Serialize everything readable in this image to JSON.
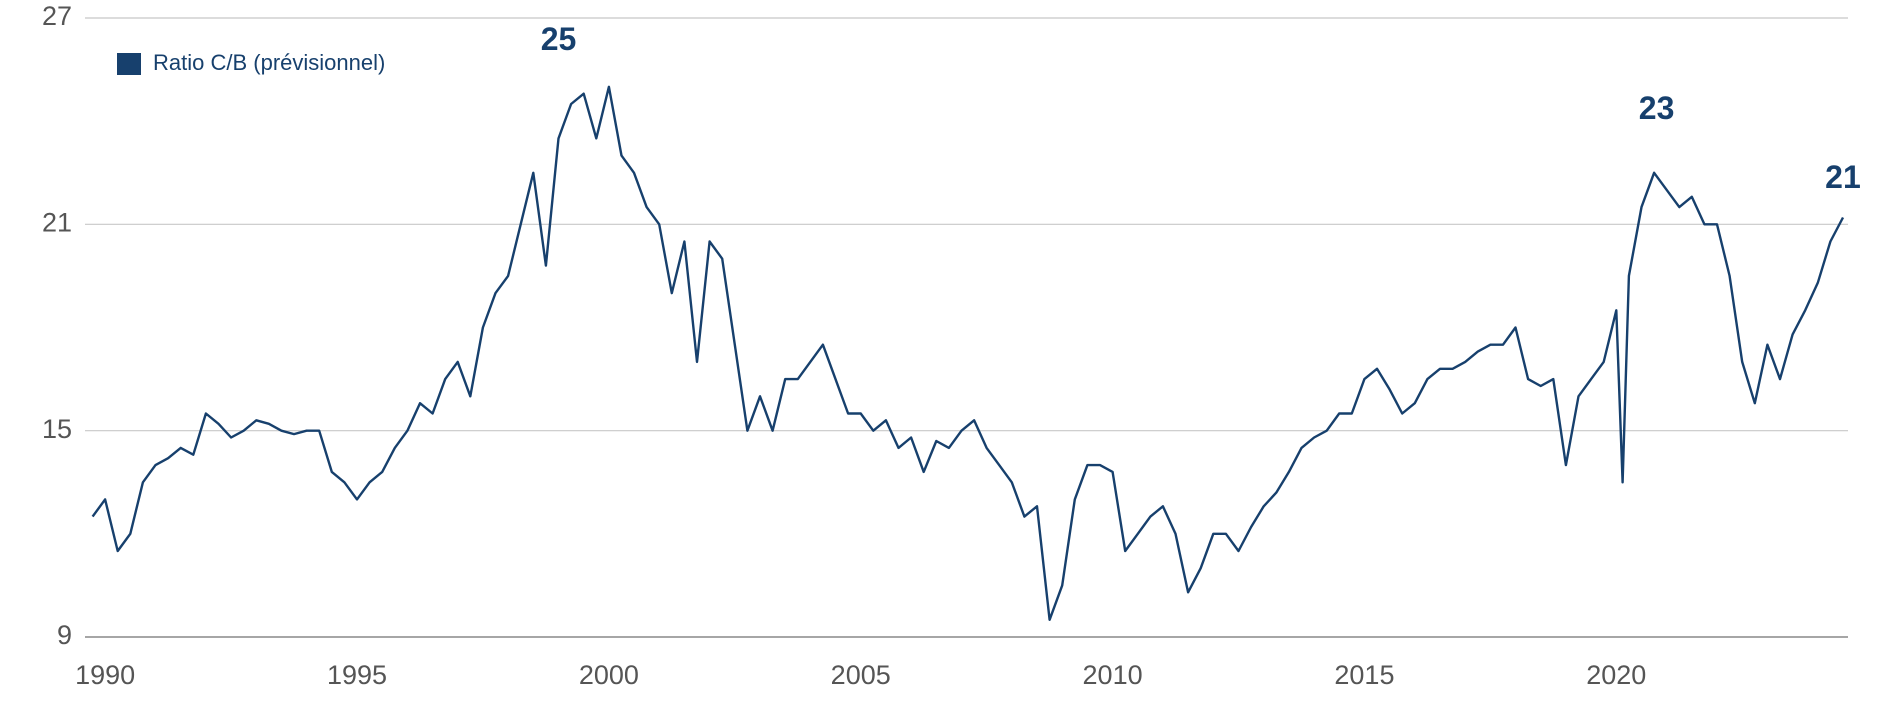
{
  "chart_data": {
    "type": "line",
    "annotations": [
      {
        "label": "25",
        "value": 25,
        "x": 1999.0
      },
      {
        "label": "23",
        "value": 23,
        "x": 2020.8
      },
      {
        "label": "21",
        "value": 21,
        "x": 2024.5
      }
    ],
    "x": [
      1989.75,
      1990.0,
      1990.25,
      1990.5,
      1990.75,
      1991.0,
      1991.25,
      1991.5,
      1991.75,
      1992.0,
      1992.25,
      1992.5,
      1992.75,
      1993.0,
      1993.25,
      1993.5,
      1993.75,
      1994.0,
      1994.25,
      1994.5,
      1994.75,
      1995.0,
      1995.25,
      1995.5,
      1995.75,
      1996.0,
      1996.25,
      1996.5,
      1996.75,
      1997.0,
      1997.25,
      1997.5,
      1997.75,
      1998.0,
      1998.25,
      1998.5,
      1998.75,
      1999.0,
      1999.25,
      1999.5,
      1999.75,
      2000.0,
      2000.25,
      2000.5,
      2000.75,
      2001.0,
      2001.25,
      2001.5,
      2001.75,
      2002.0,
      2002.25,
      2002.5,
      2002.75,
      2003.0,
      2003.25,
      2003.5,
      2003.75,
      2004.0,
      2004.25,
      2004.5,
      2004.75,
      2005.0,
      2005.25,
      2005.5,
      2005.75,
      2006.0,
      2006.25,
      2006.5,
      2006.75,
      2007.0,
      2007.25,
      2007.5,
      2007.75,
      2008.0,
      2008.25,
      2008.5,
      2008.75,
      2009.0,
      2009.25,
      2009.5,
      2009.75,
      2010.0,
      2010.25,
      2010.5,
      2010.75,
      2011.0,
      2011.25,
      2011.5,
      2011.75,
      2012.0,
      2012.25,
      2012.5,
      2012.75,
      2013.0,
      2013.25,
      2013.5,
      2013.75,
      2014.0,
      2014.25,
      2014.5,
      2014.75,
      2015.0,
      2015.25,
      2015.5,
      2015.75,
      2016.0,
      2016.25,
      2016.5,
      2016.75,
      2017.0,
      2017.25,
      2017.5,
      2017.75,
      2018.0,
      2018.25,
      2018.5,
      2018.75,
      2019.0,
      2019.25,
      2019.5,
      2019.75,
      2020.0,
      2020.125,
      2020.25,
      2020.5,
      2020.75,
      2021.0,
      2021.25,
      2021.5,
      2021.75,
      2022.0,
      2022.25,
      2022.5,
      2022.75,
      2023.0,
      2023.25,
      2023.5,
      2023.75,
      2024.0,
      2024.25,
      2024.5
    ],
    "series": [
      {
        "name": "Ratio C/B (prévisionnel)",
        "color": "#17406d",
        "values": [
          12.5,
          13.0,
          11.5,
          12.0,
          13.5,
          14.0,
          14.2,
          14.5,
          14.3,
          15.5,
          15.2,
          14.8,
          15.0,
          15.3,
          15.2,
          15.0,
          14.9,
          15.0,
          15.0,
          13.8,
          13.5,
          13.0,
          13.5,
          13.8,
          14.5,
          15.0,
          15.8,
          15.5,
          16.5,
          17.0,
          16.0,
          18.0,
          19.0,
          19.5,
          21.0,
          22.5,
          19.8,
          23.5,
          24.5,
          24.8,
          23.5,
          25.0,
          23.0,
          22.5,
          21.5,
          21.0,
          19.0,
          20.5,
          17.0,
          20.5,
          20.0,
          17.5,
          15.0,
          16.0,
          15.0,
          16.5,
          16.5,
          17.0,
          17.5,
          16.5,
          15.5,
          15.5,
          15.0,
          15.3,
          14.5,
          14.8,
          13.8,
          14.7,
          14.5,
          15.0,
          15.3,
          14.5,
          14.0,
          13.5,
          12.5,
          12.8,
          9.5,
          10.5,
          13.0,
          14.0,
          14.0,
          13.8,
          11.5,
          12.0,
          12.5,
          12.8,
          12.0,
          10.3,
          11.0,
          12.0,
          12.0,
          11.5,
          12.2,
          12.8,
          13.2,
          13.8,
          14.5,
          14.8,
          15.0,
          15.5,
          15.5,
          16.5,
          16.8,
          16.2,
          15.5,
          15.8,
          16.5,
          16.8,
          16.8,
          17.0,
          17.3,
          17.5,
          17.5,
          18.0,
          16.5,
          16.3,
          16.5,
          14.0,
          16.0,
          16.5,
          17.0,
          18.5,
          13.5,
          19.5,
          21.5,
          22.5,
          22.0,
          21.5,
          21.8,
          21.0,
          21.0,
          19.5,
          17.0,
          15.8,
          17.5,
          16.5,
          17.8,
          18.5,
          19.3,
          20.5,
          21.2
        ]
      }
    ],
    "xlim": [
      1989.6,
      2024.6
    ],
    "xticks": [
      1990,
      1995,
      2000,
      2005,
      2010,
      2015,
      2020
    ],
    "ylim": [
      9,
      27
    ],
    "yticks": [
      9,
      15,
      21,
      27
    ],
    "grid": true
  }
}
